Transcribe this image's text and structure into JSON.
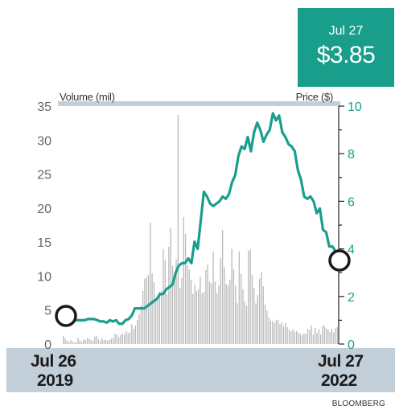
{
  "callout": {
    "date": "Jul 27",
    "price": "$3.85"
  },
  "source": "BLOOMBERG",
  "date_start": {
    "line1": "Jul 26",
    "line2": "2019"
  },
  "date_end": {
    "line1": "Jul 27",
    "line2": "2022"
  },
  "colors": {
    "price_line": "#1a9e8c",
    "volume_bars": "#b8b8b8",
    "band": "#c2ced8",
    "price_axis": "#1a9e8c",
    "volume_axis": "#666666"
  },
  "chart_data": {
    "type": "bar+line",
    "ylabel_left": "Volume (mil)",
    "ylabel_right": "Price ($)",
    "y_left_ticks": [
      "0",
      "5",
      "10",
      "15",
      "20",
      "25",
      "30",
      "35"
    ],
    "y_right_ticks": [
      "0",
      "2",
      "4",
      "6",
      "8",
      "10"
    ],
    "ylim_left": [
      0,
      35
    ],
    "ylim_right": [
      0,
      10
    ],
    "x_range": [
      "2019-07-26",
      "2022-07-27"
    ],
    "volume": [
      1.2,
      0.8,
      0.5,
      0.3,
      0.6,
      0.4,
      0.2,
      0.3,
      0.9,
      0.5,
      0.3,
      0.7,
      0.6,
      0.9,
      0.8,
      0.6,
      0.5,
      1.1,
      1.2,
      0.7,
      0.5,
      0.9,
      0.6,
      0.6,
      0.5,
      0.6,
      0.8,
      0.9,
      1.5,
      1.4,
      1.0,
      1.3,
      1.6,
      1.4,
      1.9,
      1.6,
      1.7,
      2.9,
      2.2,
      2.7,
      3.5,
      4.4,
      5.7,
      7.8,
      9.6,
      9.8,
      10.2,
      17.9,
      10.4,
      9.1,
      6.4,
      6.6,
      7.7,
      7.8,
      14.0,
      12.4,
      7.3,
      14.3,
      17.1,
      11.5,
      9.5,
      12.5,
      33.7,
      8.3,
      9.7,
      18.7,
      16.2,
      11.6,
      11.0,
      9.5,
      7.4,
      8.7,
      7.8,
      8.1,
      9.9,
      7.5,
      7.7,
      10.9,
      11.7,
      9.2,
      8.9,
      13.6,
      9.2,
      7.5,
      8.6,
      12.7,
      16.8,
      11.3,
      8.8,
      8.6,
      9.5,
      14.0,
      11.0,
      8.6,
      6.0,
      13.6,
      10.3,
      8.1,
      6.3,
      5.6,
      13.7,
      13.9,
      10.2,
      8.3,
      6.0,
      7.2,
      9.6,
      10.6,
      8.5,
      5.8,
      4.9,
      3.9,
      3.4,
      3.4,
      3.1,
      3.5,
      3.6,
      2.9,
      3.2,
      2.6,
      3.1,
      2.5,
      2.1,
      1.9,
      2.2,
      1.8,
      1.9,
      1.7,
      1.5,
      1.3,
      1.6,
      1.5,
      2.2,
      2.1,
      2.7,
      1.4,
      2.4,
      1.6,
      2.2,
      1.4,
      2.6,
      2.7,
      2.3,
      2.1,
      1.8,
      2.2,
      1.7,
      2.3,
      2.5
    ],
    "price": [
      1.0,
      1.0,
      1.0,
      1.0,
      1.0,
      1.0,
      1.0,
      1.05,
      1.05,
      1.05,
      1.0,
      0.95,
      0.95,
      0.9,
      1.0,
      0.95,
      1.0,
      0.85,
      0.85,
      1.0,
      1.05,
      1.2,
      1.5,
      1.5,
      1.5,
      1.5,
      1.6,
      1.7,
      1.8,
      1.9,
      2.1,
      2.1,
      2.3,
      2.4,
      2.5,
      3.0,
      3.3,
      3.4,
      3.4,
      3.6,
      3.4,
      4.3,
      4.0,
      5.2,
      6.4,
      6.2,
      5.9,
      5.8,
      5.9,
      6.0,
      6.2,
      6.1,
      6.3,
      6.8,
      7.1,
      7.9,
      8.3,
      8.2,
      8.7,
      8.1,
      8.9,
      9.3,
      9.0,
      8.5,
      8.8,
      9.0,
      9.7,
      9.4,
      9.6,
      8.9,
      8.7,
      8.4,
      8.3,
      8.1,
      7.3,
      6.9,
      6.2,
      6.1,
      6.2,
      6.0,
      5.5,
      5.7,
      4.8,
      4.7,
      4.1,
      4.1,
      3.9,
      3.85
    ]
  }
}
